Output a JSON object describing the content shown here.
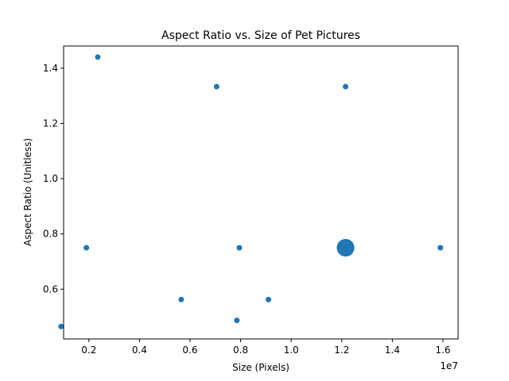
{
  "chart_data": {
    "type": "scatter",
    "title": "Aspect Ratio vs. Size of Pet Pictures",
    "xlabel": "Size (Pixels)",
    "ylabel": "Aspect Ratio (Unitless)",
    "x_offset_label": "1e7",
    "xlim": [
      1000000,
      16600000
    ],
    "ylim": [
      0.42,
      1.48
    ],
    "x_ticks": [
      {
        "value": 2000000,
        "label": "0.2"
      },
      {
        "value": 4000000,
        "label": "0.4"
      },
      {
        "value": 6000000,
        "label": "0.6"
      },
      {
        "value": 8000000,
        "label": "0.8"
      },
      {
        "value": 10000000,
        "label": "1.0"
      },
      {
        "value": 12000000,
        "label": "1.2"
      },
      {
        "value": 14000000,
        "label": "1.4"
      },
      {
        "value": 16000000,
        "label": "1.6"
      }
    ],
    "y_ticks": [
      {
        "value": 0.6,
        "label": "0.6"
      },
      {
        "value": 0.8,
        "label": "0.8"
      },
      {
        "value": 1.0,
        "label": "1.0"
      },
      {
        "value": 1.2,
        "label": "1.2"
      },
      {
        "value": 1.4,
        "label": "1.4"
      }
    ],
    "grid": false,
    "color": "#1f77b4",
    "points": [
      {
        "x": 900000,
        "y": 0.465,
        "count": 1
      },
      {
        "x": 1900000,
        "y": 0.75,
        "count": 1
      },
      {
        "x": 2350000,
        "y": 1.44,
        "count": 1
      },
      {
        "x": 5650000,
        "y": 0.5625,
        "count": 1
      },
      {
        "x": 7050000,
        "y": 1.333,
        "count": 1
      },
      {
        "x": 7850000,
        "y": 0.487,
        "count": 1
      },
      {
        "x": 7950000,
        "y": 0.75,
        "count": 1
      },
      {
        "x": 9100000,
        "y": 0.5625,
        "count": 1
      },
      {
        "x": 12150000,
        "y": 1.333,
        "count": 1
      },
      {
        "x": 12150000,
        "y": 0.75,
        "count": 10
      },
      {
        "x": 15900000,
        "y": 0.75,
        "count": 1
      }
    ]
  }
}
